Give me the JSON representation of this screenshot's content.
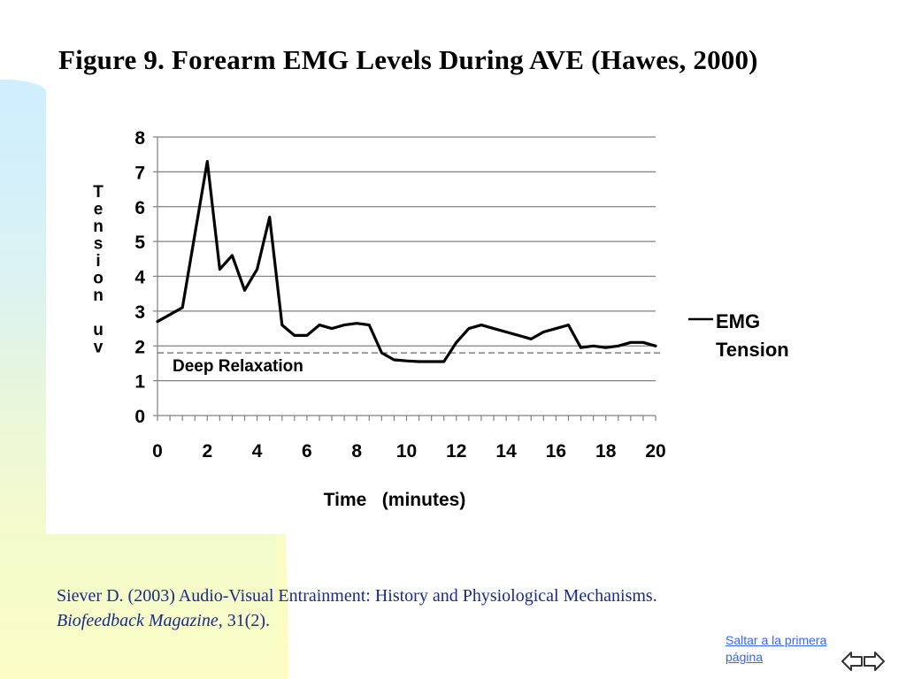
{
  "figure_title": "Figure 9.  Forearm EMG Levels During AVE (Hawes, 2000)",
  "citation": {
    "line1": "Siever D. (2003) Audio-Visual Entrainment: History and Physiological Mechanisms.",
    "magazine": "Biofeedback Magazine",
    "rest": ", 31(2)."
  },
  "nav": {
    "jump_link": "Saltar a la primera página",
    "prev_icon": "left-arrow-icon",
    "next_icon": "right-arrow-icon"
  },
  "colors": {
    "citation_text": "#1a2a8a",
    "link": "#3366ff",
    "series": "#000000",
    "grid": "#808080"
  },
  "chart_data": {
    "type": "line",
    "title": "Figure 9.  Forearm EMG Levels During AVE (Hawes, 2000)",
    "xlabel": "Time   (minutes)",
    "ylabel": "Tension uv",
    "ylabel_letters": [
      "T",
      "e",
      "n",
      "s",
      "i",
      "o",
      "n",
      "",
      "u",
      "v"
    ],
    "xlim": [
      0,
      20
    ],
    "ylim": [
      0,
      8
    ],
    "x_ticks": [
      0,
      2,
      4,
      6,
      8,
      10,
      12,
      14,
      16,
      18,
      20
    ],
    "y_ticks": [
      0,
      1,
      2,
      3,
      4,
      5,
      6,
      7,
      8
    ],
    "grid": "horizontal",
    "legend_position": "right",
    "series": [
      {
        "name": "EMG Tension",
        "x": [
          0,
          0.5,
          1,
          1.5,
          2,
          2.5,
          3,
          3.5,
          4,
          4.5,
          5,
          5.5,
          6,
          6.5,
          7,
          7.5,
          8,
          8.5,
          9,
          9.5,
          10,
          10.5,
          11,
          11.5,
          12,
          12.5,
          13,
          13.5,
          14,
          14.5,
          15,
          15.5,
          16,
          16.5,
          17,
          17.5,
          18,
          18.5,
          19,
          19.5,
          20
        ],
        "y": [
          2.7,
          2.9,
          3.1,
          5.2,
          7.3,
          4.2,
          4.6,
          3.6,
          4.2,
          5.7,
          2.6,
          2.3,
          2.3,
          2.6,
          2.5,
          2.6,
          2.65,
          2.6,
          1.8,
          1.6,
          1.57,
          1.55,
          1.55,
          1.55,
          2.1,
          2.5,
          2.6,
          2.5,
          2.4,
          2.3,
          2.2,
          2.4,
          2.5,
          2.6,
          1.95,
          2.0,
          1.95,
          2.0,
          2.1,
          2.1,
          2.0
        ]
      }
    ],
    "reference_line": {
      "y": 1.8,
      "label": "Deep Relaxation",
      "style": "dashed"
    },
    "legend": {
      "line1": "EMG",
      "line2": "Tension"
    }
  }
}
